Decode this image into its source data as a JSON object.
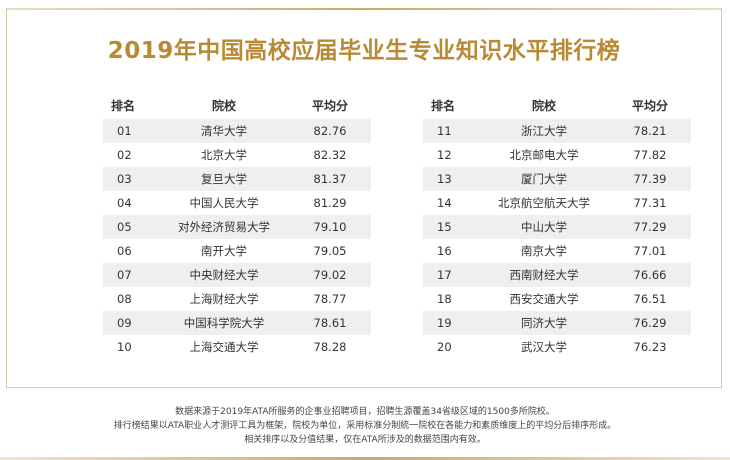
{
  "title": "2019年中国高校应届毕业生专业知识水平排行榜",
  "headers": {
    "rank": "排名",
    "school": "院校",
    "score": "平均分"
  },
  "left_rows": [
    {
      "rank": "01",
      "school": "清华大学",
      "score": "82.76"
    },
    {
      "rank": "02",
      "school": "北京大学",
      "score": "82.32"
    },
    {
      "rank": "03",
      "school": "复旦大学",
      "score": "81.37"
    },
    {
      "rank": "04",
      "school": "中国人民大学",
      "score": "81.29"
    },
    {
      "rank": "05",
      "school": "对外经济贸易大学",
      "score": "79.10"
    },
    {
      "rank": "06",
      "school": "南开大学",
      "score": "79.05"
    },
    {
      "rank": "07",
      "school": "中央财经大学",
      "score": "79.02"
    },
    {
      "rank": "08",
      "school": "上海财经大学",
      "score": "78.77"
    },
    {
      "rank": "09",
      "school": "中国科学院大学",
      "score": "78.61"
    },
    {
      "rank": "10",
      "school": "上海交通大学",
      "score": "78.28"
    }
  ],
  "right_rows": [
    {
      "rank": "11",
      "school": "浙江大学",
      "score": "78.21"
    },
    {
      "rank": "12",
      "school": "北京邮电大学",
      "score": "77.82"
    },
    {
      "rank": "13",
      "school": "厦门大学",
      "score": "77.39"
    },
    {
      "rank": "14",
      "school": "北京航空航天大学",
      "score": "77.31"
    },
    {
      "rank": "15",
      "school": "中山大学",
      "score": "77.29"
    },
    {
      "rank": "16",
      "school": "南京大学",
      "score": "77.01"
    },
    {
      "rank": "17",
      "school": "西南财经大学",
      "score": "76.66"
    },
    {
      "rank": "18",
      "school": "西安交通大学",
      "score": "76.51"
    },
    {
      "rank": "19",
      "school": "同济大学",
      "score": "76.29"
    },
    {
      "rank": "20",
      "school": "武汉大学",
      "score": "76.23"
    }
  ],
  "notes": [
    "数据来源于2019年ATA所服务的企事业招聘项目，招聘生源覆盖34省级区域的1500多所院校。",
    "排行榜结果以ATA职业人才测评工具为框架，院校为单位，采用标准分制統一院校在各能力和素质维度上的平均分后排序形成。",
    "相关排序以及分值结果，仅在ATA所涉及的数据范围内有效。"
  ],
  "colors": {
    "title": "#b98a34",
    "row_shade": "#efefef",
    "border": "#d9c9a8"
  }
}
